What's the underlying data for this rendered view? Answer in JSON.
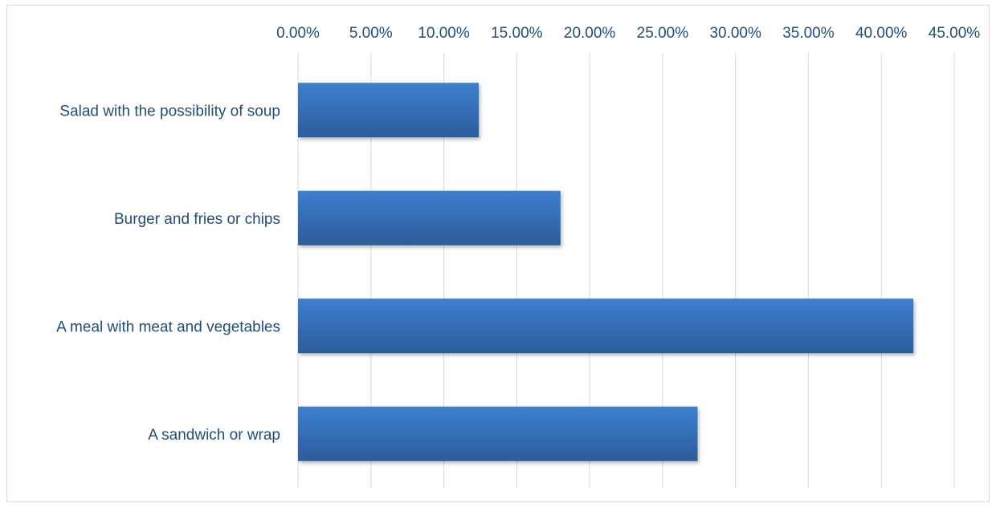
{
  "chart_data": {
    "type": "bar",
    "orientation": "horizontal",
    "categories": [
      "Salad with the possibility of soup",
      "Burger and fries or chips",
      "A meal with meat and vegetables",
      "A sandwich or wrap"
    ],
    "values": [
      0.124,
      0.18,
      0.422,
      0.274
    ],
    "xlim": [
      0,
      0.45
    ],
    "x_ticks": [
      "0.00%",
      "5.00%",
      "10.00%",
      "15.00%",
      "20.00%",
      "25.00%",
      "30.00%",
      "35.00%",
      "40.00%",
      "45.00%"
    ],
    "x_axis_position": "top",
    "grid": true,
    "legend": "none",
    "title": "",
    "xlabel": "",
    "ylabel": "",
    "bar_color": "#3b78c3",
    "bar_color_dark": "#2e5f9e",
    "grid_color": "#d6dce4",
    "text_color": "#1f4e79"
  }
}
